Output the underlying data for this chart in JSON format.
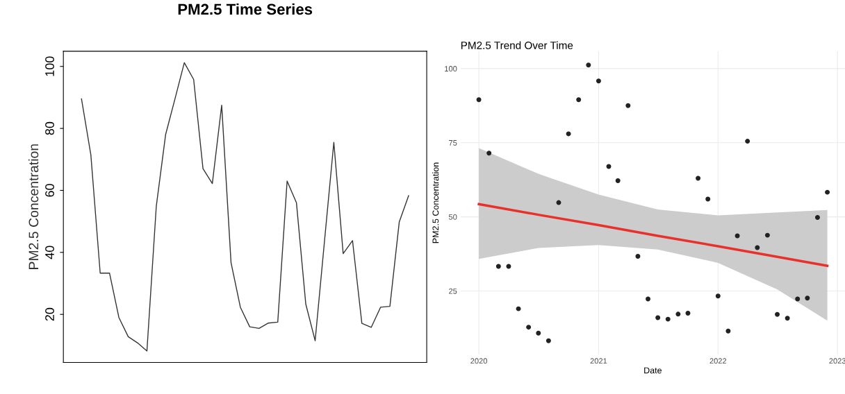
{
  "chart_data": [
    {
      "type": "line",
      "title": "PM2.5 Time Series",
      "ylabel": "PM2.5 Concentration",
      "categories": [
        null,
        null,
        null,
        null,
        null,
        null,
        null,
        null,
        null,
        null,
        null,
        null,
        null,
        null,
        null,
        null,
        null,
        null,
        null,
        null,
        null,
        null,
        null,
        null,
        null,
        null,
        null,
        null,
        null,
        null,
        null,
        null,
        null,
        null,
        null,
        null
      ],
      "series": [
        {
          "color": "#333333",
          "values": [
            89.5,
            71.5,
            33.3,
            33.3,
            19,
            12.8,
            10.8,
            8.2,
            54.8,
            78,
            89.5,
            101.2,
            95.8,
            67,
            62.2,
            87.5,
            36.7,
            22.3,
            16,
            15.5,
            17.2,
            17.5,
            63,
            56,
            23.3,
            11.5,
            43.6,
            75.5,
            39.6,
            43.8,
            17.1,
            15.8,
            22.3,
            22.6,
            49.8,
            58.3
          ]
        }
      ],
      "ylim": [
        4.48,
        104.9
      ],
      "yticks": [
        20,
        40,
        60,
        80,
        100
      ],
      "tick_labels": "y",
      "grid": false,
      "legend": false
    },
    {
      "type": "scatter",
      "title": "PM2.5 Trend Over Time",
      "xlabel": "Date",
      "ylabel": "PM2.5 Concentration",
      "series": [
        {
          "type": "scatter",
          "marker": "circle",
          "color": "#222222",
          "x": [
            "2020-01",
            "2020-02",
            "2020-03",
            "2020-04",
            "2020-05",
            "2020-06",
            "2020-07",
            "2020-08",
            "2020-09",
            "2020-10",
            "2020-11",
            "2020-12",
            "2021-01",
            "2021-02",
            "2021-03",
            "2021-04",
            "2021-05",
            "2021-06",
            "2021-07",
            "2021-08",
            "2021-09",
            "2021-10",
            "2021-11",
            "2021-12",
            "2022-01",
            "2022-02",
            "2022-03",
            "2022-04",
            "2022-05",
            "2022-06",
            "2022-07",
            "2022-08",
            "2022-09",
            "2022-10",
            "2022-11",
            "2022-12"
          ],
          "values": [
            89.5,
            71.5,
            33.3,
            33.3,
            19,
            12.8,
            10.8,
            8.2,
            54.8,
            78,
            89.5,
            101.2,
            95.8,
            67,
            62.2,
            87.5,
            36.7,
            22.3,
            16,
            15.5,
            17.2,
            17.5,
            63,
            56,
            23.3,
            11.5,
            43.6,
            75.5,
            39.6,
            43.8,
            17.1,
            15.8,
            22.3,
            22.6,
            49.8,
            58.3
          ]
        },
        {
          "type": "line",
          "color": "#e8312a",
          "x": [
            "2020-01",
            "2020-07",
            "2021-01",
            "2021-07",
            "2022-01",
            "2022-07",
            "2022-12"
          ],
          "values": [
            54.3,
            50.7,
            47.2,
            43.6,
            40.1,
            36.5,
            33.5
          ],
          "lower": [
            35.8,
            39.5,
            40.5,
            39,
            34.5,
            25.5,
            15
          ],
          "upper": [
            73.2,
            64.5,
            57.5,
            52.5,
            50.5,
            51.5,
            52.3
          ]
        }
      ],
      "xlim": [
        "2019-11-06",
        "2023-01-24"
      ],
      "xticks": [
        "2020",
        "2021",
        "2022",
        "2023"
      ],
      "ylim": [
        3.55,
        105.85
      ],
      "yticks": [
        25,
        50,
        75,
        100
      ],
      "grid": true,
      "legend": false
    }
  ]
}
